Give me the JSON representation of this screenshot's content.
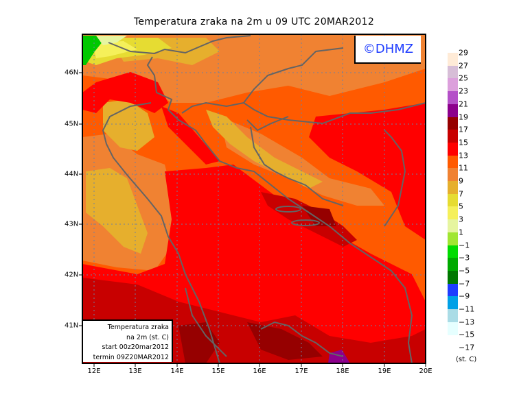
{
  "title": "Temperatura zraka na 2m u 09 UTC 20MAR2012",
  "logo": "©DHMZ",
  "lon_ticks": [
    "12E",
    "13E",
    "14E",
    "15E",
    "16E",
    "17E",
    "18E",
    "19E",
    "20E"
  ],
  "lat_ticks": [
    "46N",
    "45N",
    "44N",
    "43N",
    "42N",
    "41N"
  ],
  "infobox": {
    "line1": "Temperatura zraka",
    "line2": "na 2m (st. C)",
    "line3": "start 00z20mar2012",
    "line4": "termin 09Z20MAR2012"
  },
  "legend": {
    "labels": [
      "29",
      "27",
      "25",
      "23",
      "21",
      "19",
      "17",
      "15",
      "13",
      "11",
      "9",
      "7",
      "5",
      "3",
      "1",
      "−1",
      "−3",
      "−5",
      "−7",
      "−9",
      "−11",
      "−13",
      "−15",
      "−17"
    ],
    "colors": [
      "#ffebd7",
      "#d7bed7",
      "#dca0dc",
      "#b450c8",
      "#8c008c",
      "#960000",
      "#c80000",
      "#ff0000",
      "#ff5a00",
      "#f08232",
      "#e6af2d",
      "#e6dc32",
      "#f5f05a",
      "#e6f5a0",
      "#a0e632",
      "#00dc00",
      "#00aa00",
      "#007800",
      "#1e3cff",
      "#00a0e6",
      "#aadce6",
      "#e6ffff"
    ],
    "unit": "(st. C)"
  }
}
